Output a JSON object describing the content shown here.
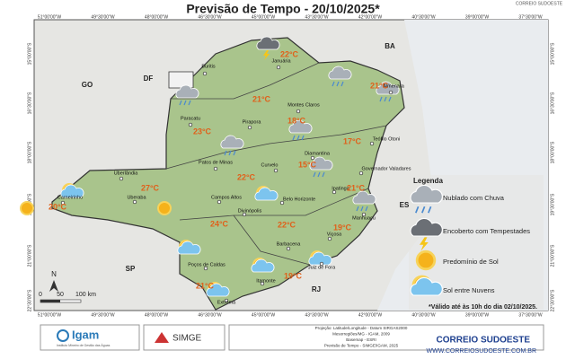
{
  "header": {
    "title": "Previsão de Tempo - 20/10/2025*",
    "watermark": "CORREIO SUDOESTE"
  },
  "axes": {
    "top": [
      "51°00'00\"W",
      "49°30'00\"W",
      "48°00'00\"W",
      "46°30'00\"W",
      "45°00'00\"W",
      "43°30'00\"W",
      "42°00'00\"W",
      "40°30'00\"W",
      "39°00'00\"W",
      "37°30'00\"W"
    ],
    "bottom": [
      "51°00'00\"W",
      "49°30'00\"W",
      "48°00'00\"W",
      "46°30'00\"W",
      "45°00'00\"W",
      "43°30'00\"W",
      "42°00'00\"W",
      "40°30'00\"W",
      "39°00'00\"W",
      "37°30'00\"W"
    ],
    "left": [
      "15°00'00\"S",
      "16°30'00\"S",
      "18°00'00\"S",
      "19°30'00\"S",
      "21°00'00\"S",
      "22°30'00\"S"
    ],
    "right": [
      "15°00'00\"S",
      "16°30'00\"S",
      "18°00'00\"S",
      "19°30'00\"S",
      "21°00'00\"S",
      "22°30'00\"S"
    ]
  },
  "states": [
    "BA",
    "GO",
    "DF",
    "ES",
    "SP",
    "RJ"
  ],
  "cities": [
    "Buritis",
    "Januária",
    "Almenara",
    "Paracatu",
    "Pirapora",
    "Montes Claros",
    "Teófilo Otoni",
    "Patos de Minas",
    "Curvelo",
    "Diamantina",
    "Governador Valadares",
    "Uberlândia",
    "Ipatinga",
    "Carneirinho",
    "Uberaba",
    "Campos Altos",
    "Belo Horizonte",
    "Manhuaçu",
    "Divinópolis",
    "Viçosa",
    "Barbacena",
    "Juiz de Fora",
    "Poços de Caldas",
    "Itamonte",
    "Extrema"
  ],
  "temperatures": [
    "22°C",
    "21°C",
    "21°C",
    "18°C",
    "23°C",
    "17°C",
    "15°C",
    "27°C",
    "22°C",
    "21°C",
    "20°C",
    "24°C",
    "22°C",
    "19°C",
    "21°C",
    "19°C"
  ],
  "legend": {
    "title": "Legenda",
    "items": [
      "Nublado com Chuva",
      "Encoberto com Tempestades",
      "Predomínio de Sol",
      "Sol entre Nuvens"
    ]
  },
  "note": "*Válido até às 10h do dia 02/10/2025.",
  "scale": {
    "north": "N",
    "ticks": [
      "0",
      "50",
      "100 km"
    ]
  },
  "footer": {
    "logo1": "Igam",
    "logo1_sub": "Instituto Mineiro de Gestão das Águas",
    "logo2": "SIMGE",
    "credits": [
      "Projeção: Latitude/Longitude - Datum SIRGAS2000",
      "Mesorregiões/MG - IGAM, 2009",
      "Basemap - ESRI",
      "Previsão de Tempo - SIMGE/IGAM, 2025"
    ],
    "brand": "CORREIO SUDOESTE",
    "site": "WWW.CORREIOSUDOESTE.COM.BR"
  }
}
